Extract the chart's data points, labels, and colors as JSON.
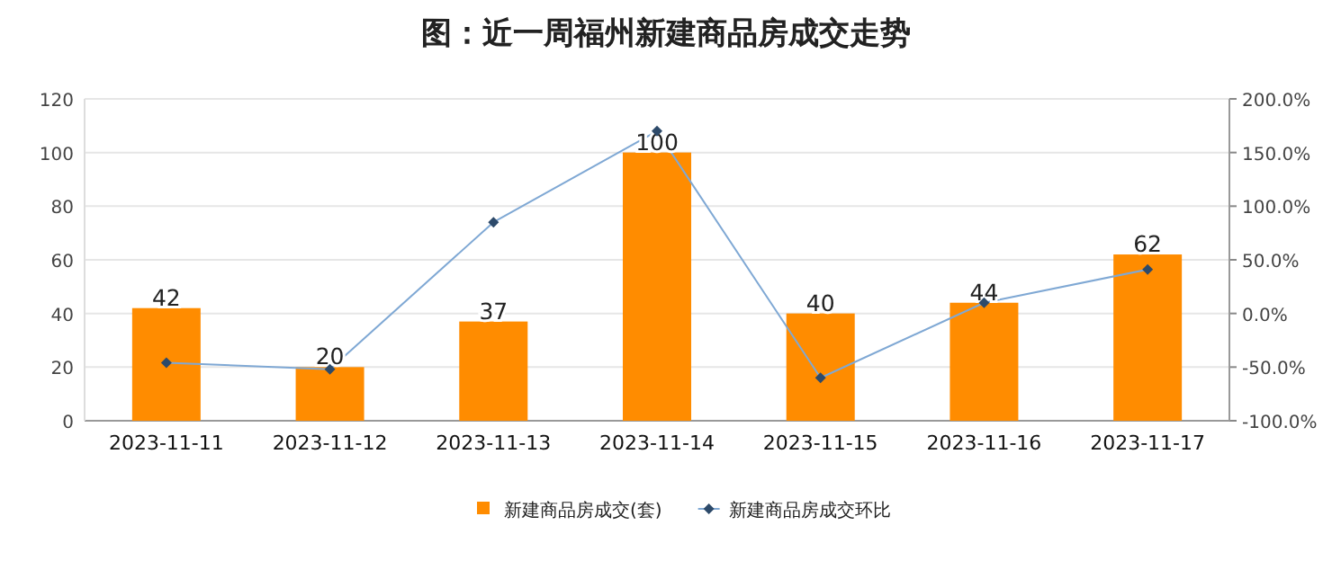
{
  "chart_data": {
    "type": "bar",
    "title": "图：近一周福州新建商品房成交走势",
    "categories": [
      "2023-11-11",
      "2023-11-12",
      "2023-11-13",
      "2023-11-14",
      "2023-11-15",
      "2023-11-16",
      "2023-11-17"
    ],
    "series": [
      {
        "name": "新建商品房成交(套)",
        "color": "#ff8c00",
        "values": [
          42,
          20,
          37,
          100,
          40,
          44,
          62
        ],
        "value_labels": [
          "42",
          "20",
          "37",
          "100",
          "40",
          "44",
          "62"
        ]
      },
      {
        "name": "新建商品房成交环比",
        "type": "line",
        "axis": "y2",
        "color": "#7fa8d4",
        "marker": "diamond",
        "values": [
          -46,
          -52,
          85,
          170,
          -60,
          10,
          41
        ]
      }
    ],
    "ylim": [
      0,
      120
    ],
    "yticks": [
      0,
      20,
      40,
      60,
      80,
      100,
      120
    ],
    "y2lim": [
      -100,
      200
    ],
    "y2ticks": [
      {
        "value": -100,
        "label": "-100.0%"
      },
      {
        "value": -50,
        "label": "-50.0%"
      },
      {
        "value": 0,
        "label": "0.0%"
      },
      {
        "value": 50,
        "label": "50.0%"
      },
      {
        "value": 100,
        "label": "100.0%"
      },
      {
        "value": 150,
        "label": "150.0%"
      },
      {
        "value": 200,
        "label": "200.0%"
      }
    ],
    "grid": "y",
    "legend": "bottom"
  }
}
